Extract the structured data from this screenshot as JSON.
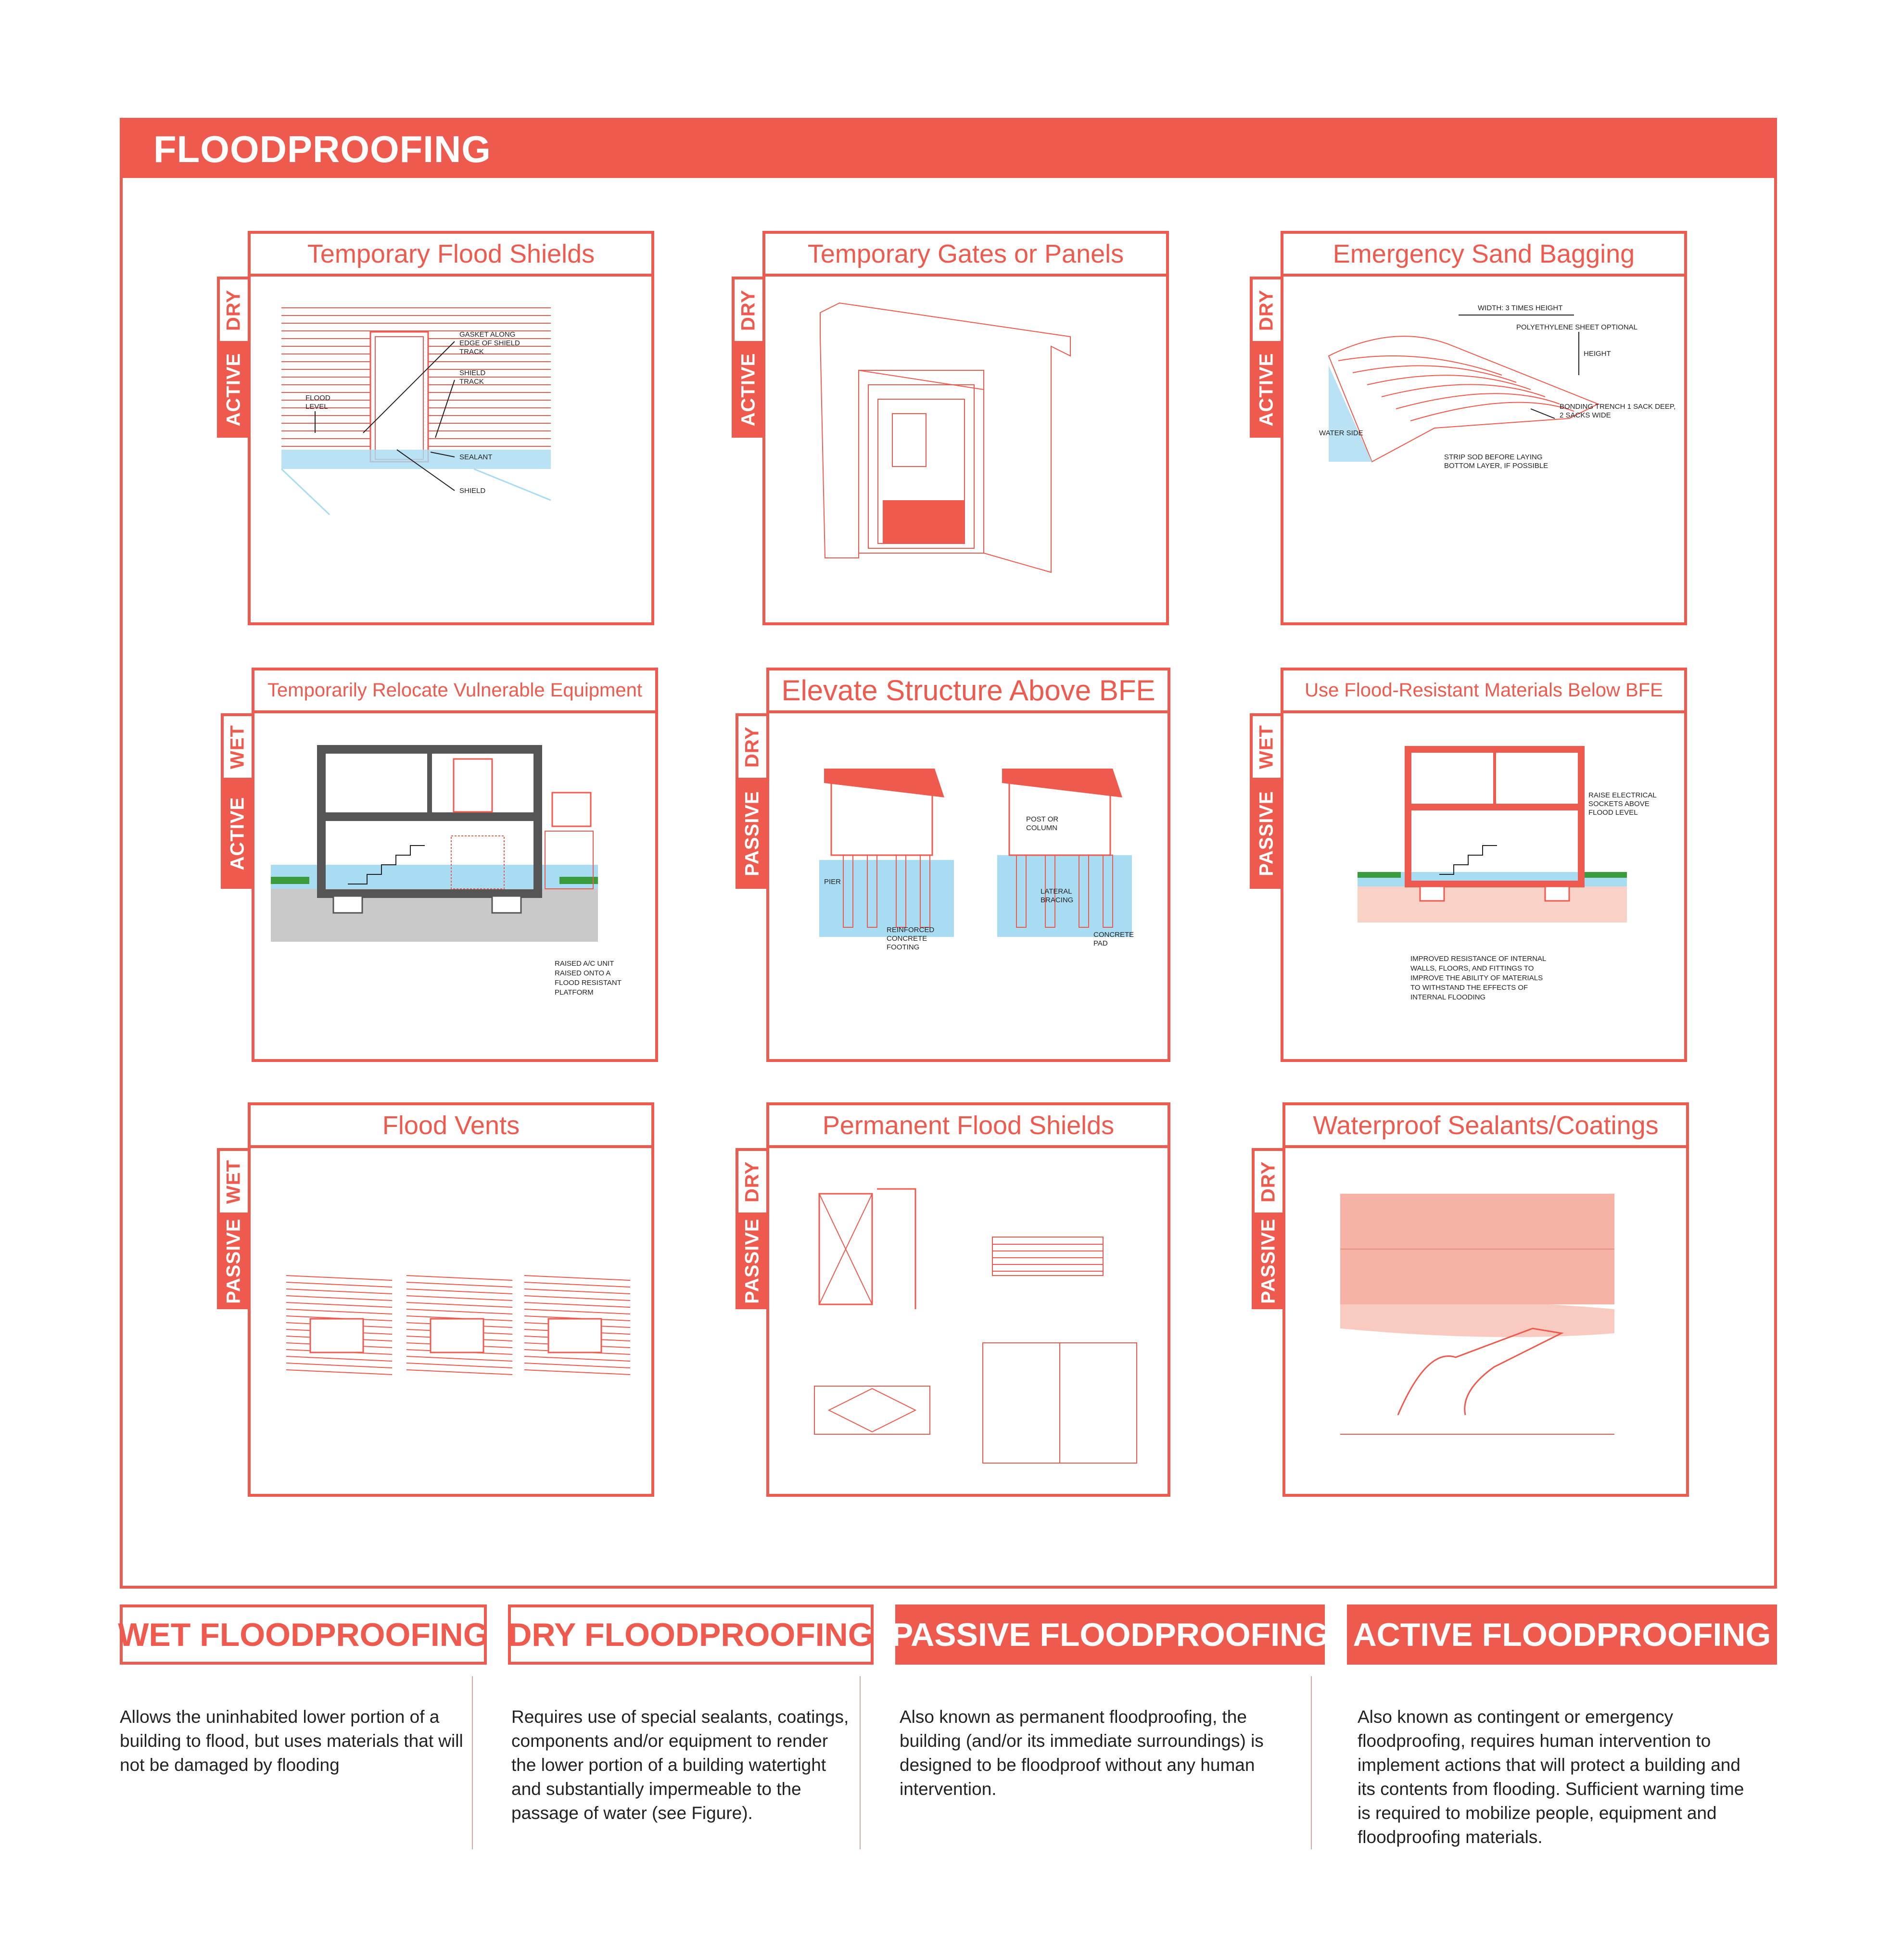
{
  "page_title": "FLOODPROOFING",
  "panels": [
    {
      "title": "Temporary Flood Shields",
      "tag_top": "DRY",
      "tag_bottom": "ACTIVE",
      "labels": [
        "GASKET ALONG",
        "EDGE OF SHIELD",
        "TRACK",
        "SHIELD",
        "TRACK",
        "FLOOD",
        "LEVEL",
        "SEALANT",
        "SHIELD"
      ]
    },
    {
      "title": "Temporary Gates or Panels",
      "tag_top": "DRY",
      "tag_bottom": "ACTIVE"
    },
    {
      "title": "Emergency Sand Bagging",
      "tag_top": "DRY",
      "tag_bottom": "ACTIVE",
      "labels": [
        "WIDTH: 3 TIMES HEIGHT",
        "POLYETHYLENE SHEET OPTIONAL",
        "HEIGHT",
        "BONDING TRENCH 1 SACK DEEP,",
        "2 SACKS WIDE",
        "WATER SIDE",
        "STRIP SOD BEFORE LAYING",
        "BOTTOM LAYER, IF POSSIBLE"
      ]
    },
    {
      "title": "Temporarily Relocate Vulnerable Equipment",
      "tag_top": "WET",
      "tag_bottom": "ACTIVE",
      "labels": [
        "RAISED A/C UNIT",
        "RAISED ONTO A",
        "FLOOD RESISTANT",
        "PLATFORM"
      ]
    },
    {
      "title": "Elevate Structure Above BFE",
      "tag_top": "DRY",
      "tag_bottom": "PASSIVE",
      "labels": [
        "PIER",
        "REINFORCED",
        "CONCRETE",
        "FOOTING",
        "POST OR",
        "COLUMN",
        "LATERAL",
        "BRACING",
        "CONCRETE",
        "PAD"
      ]
    },
    {
      "title": "Use Flood-Resistant Materials Below BFE",
      "tag_top": "WET",
      "tag_bottom": "PASSIVE",
      "labels": [
        "RAISE ELECTRICAL",
        "SOCKETS ABOVE",
        "FLOOD LEVEL",
        "IMPROVED RESISTANCE OF INTERNAL",
        "WALLS, FLOORS, AND FITTINGS TO",
        "IMPROVE THE ABILITY OF MATERIALS",
        "TO WITHSTAND THE EFFECTS OF",
        "INTERNAL FLOODING"
      ]
    },
    {
      "title": "Flood Vents",
      "tag_top": "WET",
      "tag_bottom": "PASSIVE"
    },
    {
      "title": "Permanent Flood Shields",
      "tag_top": "DRY",
      "tag_bottom": "PASSIVE"
    },
    {
      "title": "Waterproof Sealants/Coatings",
      "tag_top": "DRY",
      "tag_bottom": "PASSIVE"
    }
  ],
  "definitions": [
    {
      "heading": "WET FLOODPROOFING",
      "style": "outline",
      "lines": [
        "Allows the uninhabited lower portion of a",
        "building to flood, but uses materials that will",
        "not be damaged by flooding"
      ]
    },
    {
      "heading": "DRY FLOODPROOFING",
      "style": "outline",
      "lines": [
        "Requires use of special sealants, coatings,",
        "components and/or equipment to render",
        "the lower portion of a building watertight",
        "and substantially impermeable to the",
        "passage of water (see Figure)."
      ]
    },
    {
      "heading": "PASSIVE FLOODPROOFING",
      "style": "filled",
      "lines": [
        "Also known as permanent floodproofing, the",
        "building (and/or its immediate surroundings) is",
        "designed to be floodproof without any human",
        "intervention."
      ]
    },
    {
      "heading": "ACTIVE FLOODPROOFING",
      "style": "filled",
      "lines": [
        "Also known as contingent or emergency",
        "floodproofing, requires human intervention to",
        "implement actions that will protect a building and",
        "its contents from flooding. Sufficient warning time",
        "is required to mobilize people, equipment and",
        "floodproofing materials."
      ]
    }
  ],
  "colors": {
    "accent": "#ef5a4e",
    "water": "#a8dcf2",
    "grass": "#3a9c3a",
    "ground": "#c9c9c9",
    "wall": "#555555",
    "pink": "#f6b3a5"
  }
}
